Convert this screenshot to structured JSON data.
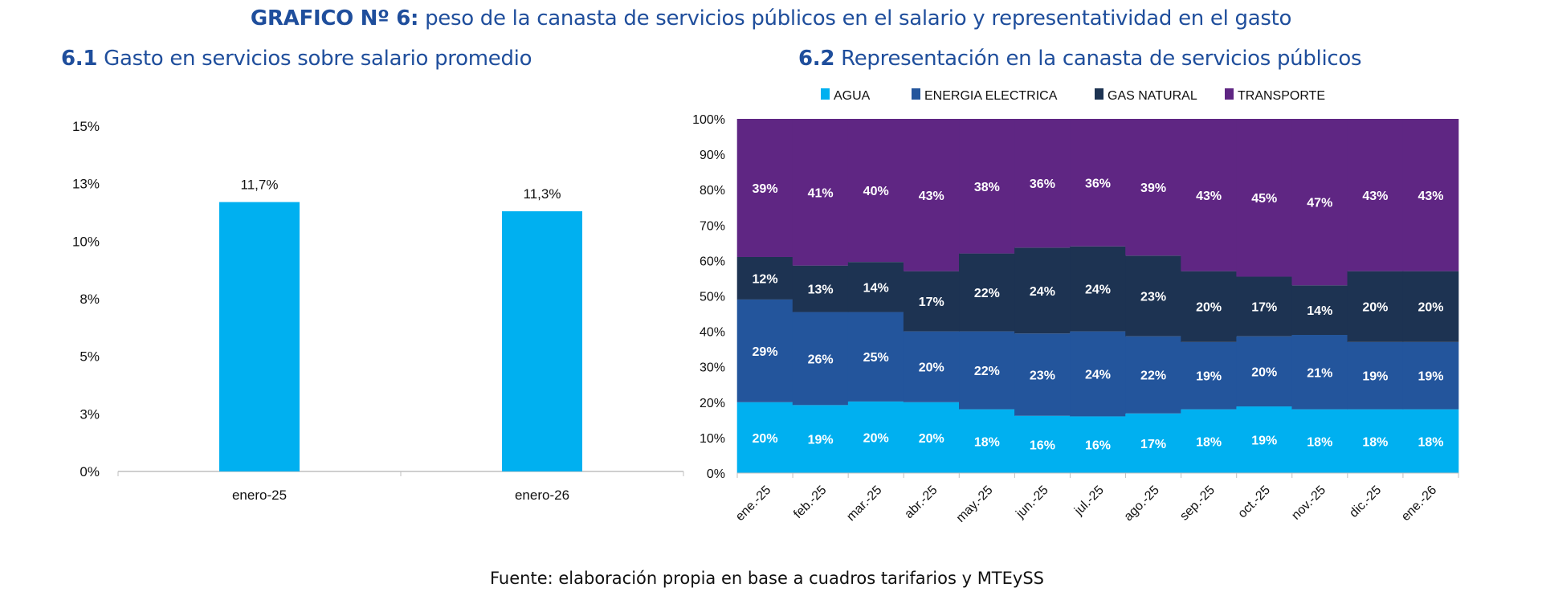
{
  "title": {
    "bold": "GRAFICO Nº 6:",
    "rest": "peso de la canasta de servicios públicos en el salario y representatividad en el gasto"
  },
  "source": "Fuente: elaboración propia en base a cuadros tarifarios y MTEySS",
  "colors": {
    "title": "#1f4e9c",
    "agua": "#00b0f0",
    "energia": "#23559c",
    "gas": "#1d3352",
    "transporte": "#5f2683"
  },
  "chart_data": [
    {
      "type": "bar",
      "title_num": "6.1",
      "title": "Gasto en servicios sobre salario promedio",
      "categories": [
        "enero-25",
        "enero-26"
      ],
      "values": [
        11.7,
        11.3
      ],
      "data_labels": [
        "11,7%",
        "11,3%"
      ],
      "ylim": [
        0,
        15
      ],
      "yticks": [
        0,
        2.5,
        5,
        7.5,
        10,
        12.5,
        15
      ],
      "ytick_labels": [
        "0%",
        "3%",
        "5%",
        "8%",
        "10%",
        "13%",
        "15%"
      ],
      "grid": false,
      "color": "#00b0f0"
    },
    {
      "type": "stacked-area",
      "title_num": "6.2",
      "title": "Representación en la canasta de servicios públicos",
      "legend_position": "top",
      "categories": [
        "ene.-25",
        "feb.-25",
        "mar.-25",
        "abr.-25",
        "may.-25",
        "jun.-25",
        "jul.-25",
        "ago.-25",
        "sep.-25",
        "oct.-25",
        "nov.-25",
        "dic.-25",
        "ene.-26"
      ],
      "ylim": [
        0,
        100
      ],
      "ytick_labels": [
        "0%",
        "10%",
        "20%",
        "30%",
        "40%",
        "50%",
        "60%",
        "70%",
        "80%",
        "90%",
        "100%"
      ],
      "grid": false,
      "series": [
        {
          "name": "AGUA",
          "color": "#00b0f0",
          "values": [
            20,
            19,
            20,
            20,
            18,
            16,
            16,
            17,
            18,
            19,
            18,
            18,
            18
          ]
        },
        {
          "name": "ENERGIA ELECTRICA",
          "color": "#23559c",
          "values": [
            29,
            26,
            25,
            20,
            22,
            23,
            24,
            22,
            19,
            20,
            21,
            19,
            19
          ]
        },
        {
          "name": "GAS NATURAL",
          "color": "#1d3352",
          "values": [
            12,
            13,
            14,
            17,
            22,
            24,
            24,
            23,
            20,
            17,
            14,
            20,
            20
          ]
        },
        {
          "name": "TRANSPORTE",
          "color": "#5f2683",
          "values": [
            39,
            41,
            40,
            43,
            38,
            36,
            36,
            39,
            43,
            45,
            47,
            43,
            43
          ]
        }
      ]
    }
  ]
}
